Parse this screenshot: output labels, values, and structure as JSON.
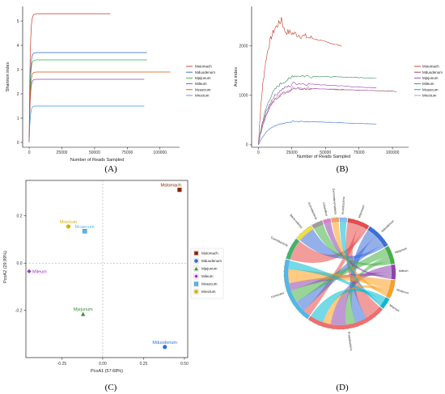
{
  "panels": [
    {
      "label": "(A)",
      "chart_data": {
        "type": "line",
        "xlabel": "Number of Reads Sampled",
        "ylabel": "Shannon index",
        "xlim": [
          -5000,
          115000
        ],
        "ylim": [
          -0.2,
          5.6
        ],
        "xticks": [
          0,
          25000,
          50000,
          75000,
          100000
        ],
        "yticks": [
          0,
          1,
          2,
          3,
          4,
          5
        ],
        "grid": false,
        "legend_position": "right",
        "series": [
          {
            "name": "Mstomach",
            "color": "#c0392b",
            "plateau": 5.3,
            "xmax": 62000
          },
          {
            "name": "Mduodenum",
            "color": "#2c5fc7",
            "plateau": 3.7,
            "xmax": 90000
          },
          {
            "name": "Mjejunum",
            "color": "#3aa84b",
            "plateau": 3.4,
            "xmax": 90000
          },
          {
            "name": "Mileum",
            "color": "#8e44ad",
            "plateau": 2.6,
            "xmax": 88000
          },
          {
            "name": "Mcaecum",
            "color": "#d35400",
            "plateau": 2.9,
            "xmax": 108000
          },
          {
            "name": "Mrectum",
            "color": "#3b9bd9",
            "plateau": 1.5,
            "xmax": 88000
          }
        ]
      }
    },
    {
      "label": "(B)",
      "chart_data": {
        "type": "line",
        "xlabel": "Number of Reads Sampled",
        "ylabel": "Ace index",
        "xlim": [
          -5000,
          112000
        ],
        "ylim": [
          -50,
          2800
        ],
        "xticks": [
          0,
          25000,
          50000,
          75000,
          100000
        ],
        "yticks": [
          0,
          1000,
          2000
        ],
        "grid": false,
        "legend_position": "right",
        "series": [
          {
            "name": "Mstomach",
            "color": "#c0392b",
            "peak": 2600,
            "end": 2000,
            "xmax": 62000
          },
          {
            "name": "Mduodenum",
            "color": "#8b3a3a",
            "peak": 1150,
            "end": 1080,
            "xmax": 103000
          },
          {
            "name": "Mjejunum",
            "color": "#8e44ad",
            "peak": 1250,
            "end": 1150,
            "xmax": 88000
          },
          {
            "name": "Mileum",
            "color": "#2e8b57",
            "peak": 1400,
            "end": 1350,
            "xmax": 88000
          },
          {
            "name": "Mcaecum",
            "color": "#3a6fd8",
            "peak": 480,
            "end": 420,
            "xmax": 88000
          },
          {
            "name": "Mrectum",
            "color": "#c77dd6",
            "peak": 1150,
            "end": 1100,
            "xmax": 88000
          }
        ]
      }
    },
    {
      "label": "(C)",
      "chart_data": {
        "type": "scatter",
        "xlabel": "PcoA1 (57.68%)",
        "ylabel": "PcoA2 (29.99%)",
        "xlim": [
          -0.47,
          0.52
        ],
        "ylim": [
          -0.4,
          0.35
        ],
        "xticks": [
          -0.25,
          0.0,
          0.25,
          0.5
        ],
        "xtick_labels": [
          "-0.25",
          "0.00",
          "0.25",
          "0.50"
        ],
        "yticks": [
          -0.2,
          0.0,
          0.2
        ],
        "ytick_labels": [
          "-0.2",
          "0.0",
          "0.2"
        ],
        "grid": false,
        "legend_position": "right",
        "points": [
          {
            "name": "Mstomach",
            "x": 0.47,
            "y": 0.31,
            "color": "#8b2500",
            "shape": "square"
          },
          {
            "name": "Mduodenum",
            "x": 0.38,
            "y": -0.355,
            "color": "#2f6fdb",
            "shape": "circle"
          },
          {
            "name": "Mjejunum",
            "x": -0.12,
            "y": -0.215,
            "color": "#3d8b3d",
            "shape": "triangle"
          },
          {
            "name": "Mileum",
            "x": -0.45,
            "y": -0.035,
            "color": "#9b30c0",
            "shape": "diamond"
          },
          {
            "name": "Mcaecum",
            "x": -0.11,
            "y": 0.135,
            "color": "#5bb8e0",
            "shape": "boxsquare"
          },
          {
            "name": "Mrectum",
            "x": -0.21,
            "y": 0.155,
            "color": "#d4b000",
            "shape": "circle"
          }
        ]
      }
    },
    {
      "label": "(D)",
      "chart_data": {
        "type": "chord",
        "sectors": [
          "Mstomach",
          "Mduodenum",
          "Mjejunum",
          "Mileum",
          "Mcaecum",
          "Mrectum",
          "Proteobacteria",
          "Firmicutes",
          "Cyanobacteria",
          "Bacteroidetes",
          "Actinobacteria",
          "Chloroflexi",
          "Gemmatimonadetes",
          "Acidobacteria"
        ],
        "sector_colors": [
          "#e84a4a",
          "#3a6fd8",
          "#45b045",
          "#8e44ad",
          "#ff9f1c",
          "#00bcd4",
          "#f26d6d",
          "#4fb8e8",
          "#3fb56b",
          "#f0e040",
          "#9e9e9e",
          "#e07bd0",
          "#f4a261",
          "#7fbfff"
        ]
      }
    }
  ]
}
